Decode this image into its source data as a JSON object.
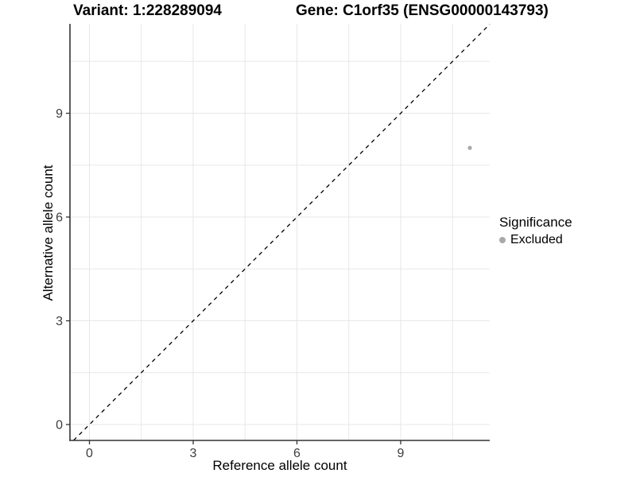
{
  "chart_data": {
    "type": "scatter",
    "title_variant": "Variant: 1:228289094",
    "title_gene": "Gene: C1orf35 (ENSG00000143793)",
    "xlabel": "Reference allele count",
    "ylabel": "Alternative allele count",
    "x_ticks": [
      0,
      3,
      6,
      9
    ],
    "y_ticks": [
      0,
      3,
      6,
      9
    ],
    "x_minor_breaks": [
      1.5,
      4.5,
      7.5,
      10.5
    ],
    "y_minor_breaks": [
      1.5,
      4.5,
      7.5,
      10.5
    ],
    "xlim": [
      -0.56,
      11.57
    ],
    "ylim": [
      -0.46,
      11.59
    ],
    "identity_line": {
      "style": "dashed",
      "slope": 1,
      "intercept": 0,
      "color": "#000000"
    },
    "points": [
      {
        "x": 11,
        "y": 8,
        "significance": "Excluded"
      }
    ],
    "legend": {
      "title": "Significance",
      "position": "right",
      "items": [
        {
          "label": "Excluded",
          "color": "#a9a9a9"
        }
      ]
    },
    "colors": {
      "background": "#ffffff",
      "point": "#a9a9a9",
      "gridline": "#e7e7e7",
      "axis_line": "#333333",
      "tick_mark": "#333333",
      "tick_label": "#3d3d3d"
    },
    "grid": "major+minor",
    "axis_lines": "left-bottom-only"
  }
}
